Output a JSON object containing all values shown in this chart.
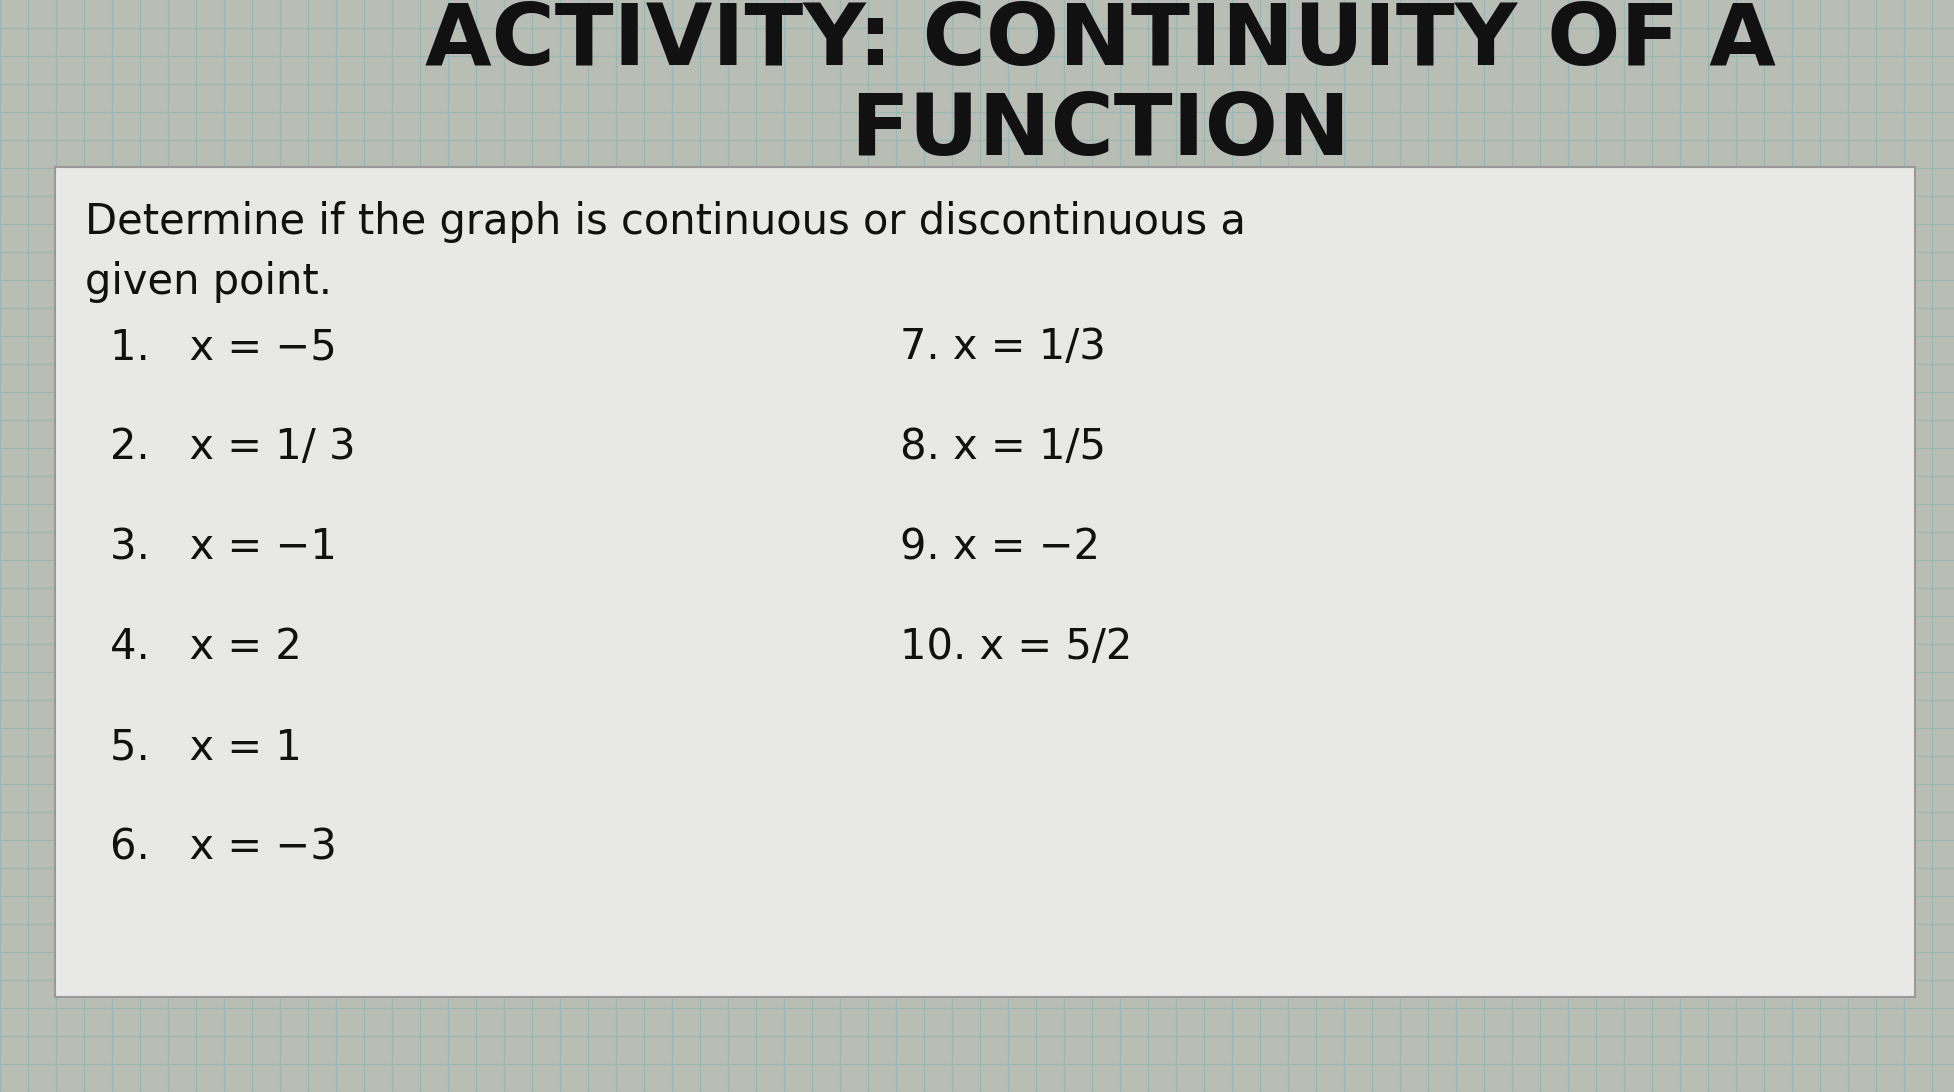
{
  "title_line1": "ACTIVITY: CONTINUITY OF A",
  "title_line2": "FUNCTION",
  "instruction_line1": "Determine if the graph is continuous or discontinuous a",
  "instruction_line2": "given point.",
  "items_left": [
    "1.   x = −5",
    "2.   x = 1/ 3",
    "3.   x = −1",
    "4.   x = 2",
    "5.   x = 1",
    "6.   x = −3"
  ],
  "items_right": [
    "7. x = 1/3",
    "8. x = 1/5",
    "9. x = −2",
    "10. x = 5/2"
  ],
  "bg_color": "#b8bdb5",
  "grid_line_color": "#8fb5b0",
  "box_color": "#e8e8e6",
  "title_color": "#111111",
  "text_color": "#111111"
}
